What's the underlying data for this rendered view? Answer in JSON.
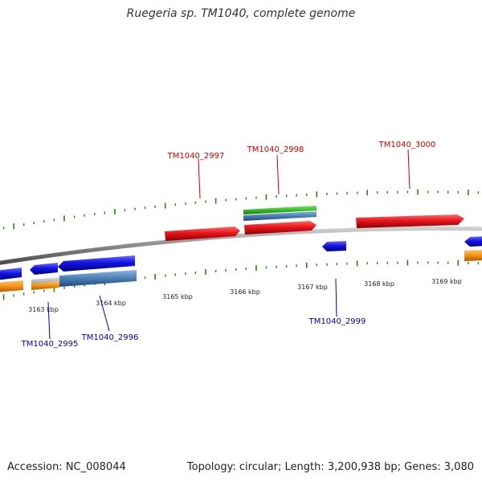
{
  "title": "Ruegeria sp. TM1040, complete genome",
  "footer": {
    "accession": "Accession: NC_008044",
    "topology": "Topology: circular; Length: 3,200,938 bp; Genes: 3,080"
  },
  "colors": {
    "forward_label": "#cc0000",
    "reverse_label": "#0000aa",
    "tick": "#2e7d1a",
    "backbone": "#8a8a8a",
    "red_gene": "#e8151b",
    "blue_gene": "#1414e6",
    "steel_gene": "#4a7fb5",
    "green_gene": "#33c024",
    "orange_gene": "#f59214",
    "gray_gene": "#b5b5b5"
  },
  "axis_labels": [
    "3163 kbp",
    "3164 kbp",
    "3165 kbp",
    "3166 kbp",
    "3167 kbp",
    "3168 kbp",
    "3169 kbp"
  ],
  "gene_labels": {
    "forward": [
      "TM1040_2997",
      "TM1040_2998",
      "TM1040_3000"
    ],
    "reverse": [
      "TM1040_2995",
      "TM1040_2996",
      "TM1040_2999"
    ]
  }
}
